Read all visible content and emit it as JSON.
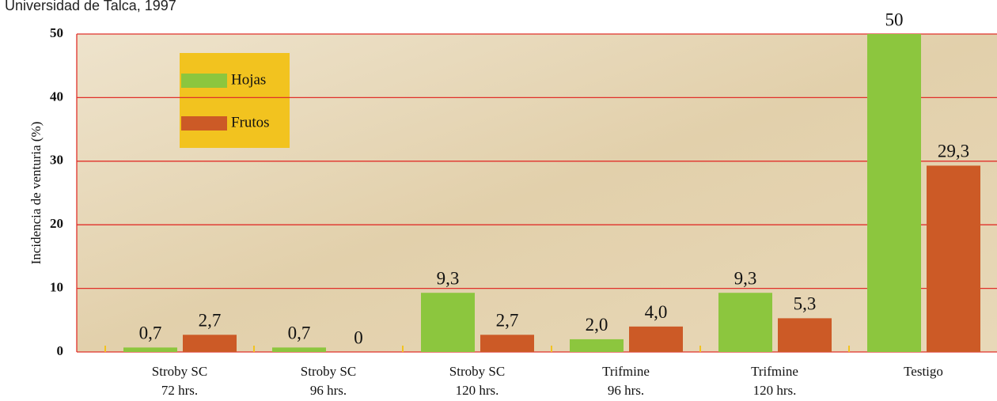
{
  "chart_data": {
    "type": "bar",
    "subtitle": "Universidad de Talca, 1997",
    "y_label": "Incidencia de venturia (%)",
    "categories": [
      [
        "Stroby SC",
        "72 hrs."
      ],
      [
        "Stroby SC",
        "96 hrs."
      ],
      [
        "Stroby SC",
        "120 hrs."
      ],
      [
        "Trifmine",
        "96 hrs."
      ],
      [
        "Trifmine",
        "120 hrs."
      ],
      [
        "Testigo"
      ]
    ],
    "series": [
      {
        "name": "Hojas",
        "color": "#8cc63e",
        "values": [
          0.7,
          0.7,
          9.3,
          2.0,
          9.3,
          50
        ],
        "value_labels": [
          "0,7",
          "0,7",
          "9,3",
          "2,0",
          "9,3",
          "50"
        ]
      },
      {
        "name": "Frutos",
        "color": "#cc5a26",
        "values": [
          2.7,
          0,
          2.7,
          4.0,
          5.3,
          29.3
        ],
        "value_labels": [
          "2,7",
          "0",
          "2,7",
          "4,0",
          "5,3",
          "29,3"
        ]
      }
    ],
    "ylim": [
      0,
      50
    ],
    "yticks": [
      0,
      10,
      20,
      30,
      40,
      50
    ],
    "grid": true,
    "legend_color": "#f2c31f",
    "grid_color": "#e0302a"
  }
}
